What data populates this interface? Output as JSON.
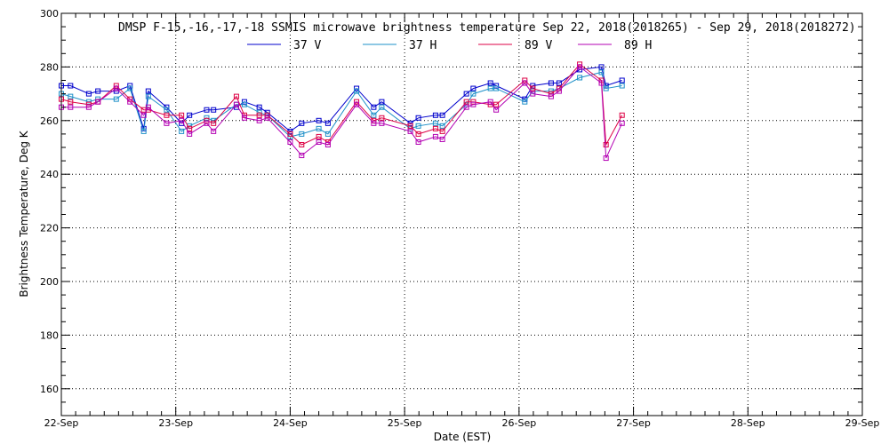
{
  "chart_data": {
    "type": "line",
    "title": "DMSP F-15,-16,-17,-18 SSMIS microwave brightness temperature Sep 22, 2018(2018265) - Sep 29, 2018(2018272)",
    "xlabel": "Date (EST)",
    "ylabel": "Brightness Temperature, Deg K",
    "ylim": [
      150,
      300
    ],
    "yticks": [
      160,
      180,
      200,
      220,
      240,
      260,
      280,
      300
    ],
    "xlim": [
      0,
      7
    ],
    "xticks": [
      0,
      1,
      2,
      3,
      4,
      5,
      6,
      7
    ],
    "xtick_labels": [
      "22-Sep",
      "23-Sep",
      "24-Sep",
      "25-Sep",
      "26-Sep",
      "27-Sep",
      "28-Sep",
      "29-Sep"
    ],
    "grid": true,
    "legend_position": "top-center",
    "series": [
      {
        "name": "37 V",
        "color": "#0000cc",
        "x": [
          0.0,
          0.08,
          0.24,
          0.32,
          0.48,
          0.6,
          0.72,
          0.76,
          0.92,
          1.05,
          1.12,
          1.27,
          1.33,
          1.53,
          1.6,
          1.73,
          1.8,
          2.0,
          2.1,
          2.25,
          2.33,
          2.58,
          2.73,
          2.8,
          3.05,
          3.12,
          3.27,
          3.33,
          3.54,
          3.6,
          3.75,
          3.8,
          4.05,
          4.12,
          4.28,
          4.35,
          4.53,
          4.72,
          4.76,
          4.9
        ],
        "values": [
          273,
          273,
          270,
          271,
          271,
          273,
          257,
          271,
          265,
          259,
          262,
          264,
          264,
          265,
          267,
          265,
          263,
          256,
          259,
          260,
          259,
          272,
          265,
          267,
          259,
          261,
          262,
          262,
          270,
          272,
          274,
          273,
          268,
          273,
          274,
          274,
          279,
          280,
          273,
          275
        ]
      },
      {
        "name": "37 H",
        "color": "#1e90c8",
        "x": [
          0.0,
          0.08,
          0.24,
          0.32,
          0.48,
          0.6,
          0.72,
          0.76,
          0.92,
          1.05,
          1.12,
          1.27,
          1.33,
          1.53,
          1.6,
          1.73,
          1.8,
          2.0,
          2.1,
          2.25,
          2.33,
          2.58,
          2.73,
          2.8,
          3.05,
          3.12,
          3.27,
          3.33,
          3.54,
          3.6,
          3.75,
          3.8,
          4.05,
          4.12,
          4.28,
          4.35,
          4.53,
          4.72,
          4.76,
          4.9
        ],
        "values": [
          270,
          269,
          267,
          268,
          268,
          272,
          256,
          269,
          264,
          256,
          258,
          261,
          260,
          266,
          266,
          263,
          262,
          254,
          255,
          257,
          255,
          271,
          262,
          265,
          257,
          258,
          259,
          258,
          266,
          270,
          272,
          272,
          267,
          271,
          271,
          272,
          276,
          278,
          272,
          273
        ]
      },
      {
        "name": "89 V",
        "color": "#dd0044",
        "x": [
          0.0,
          0.08,
          0.24,
          0.32,
          0.48,
          0.6,
          0.72,
          0.76,
          0.92,
          1.05,
          1.12,
          1.27,
          1.33,
          1.53,
          1.6,
          1.73,
          1.8,
          2.0,
          2.1,
          2.25,
          2.33,
          2.58,
          2.73,
          2.8,
          3.05,
          3.12,
          3.27,
          3.33,
          3.54,
          3.6,
          3.75,
          3.8,
          4.05,
          4.12,
          4.28,
          4.35,
          4.53,
          4.72,
          4.76,
          4.9
        ],
        "values": [
          268,
          267,
          266,
          267,
          273,
          268,
          264,
          264,
          262,
          262,
          257,
          260,
          259,
          269,
          262,
          262,
          262,
          255,
          251,
          254,
          252,
          267,
          260,
          261,
          258,
          255,
          257,
          256,
          267,
          267,
          266,
          266,
          275,
          272,
          270,
          272,
          281,
          275,
          251,
          262
        ]
      },
      {
        "name": "89 H",
        "color": "#b300b3",
        "x": [
          0.0,
          0.08,
          0.24,
          0.32,
          0.48,
          0.6,
          0.72,
          0.76,
          0.92,
          1.05,
          1.12,
          1.27,
          1.33,
          1.53,
          1.6,
          1.73,
          1.8,
          2.0,
          2.1,
          2.25,
          2.33,
          2.58,
          2.73,
          2.8,
          3.05,
          3.12,
          3.27,
          3.33,
          3.54,
          3.6,
          3.75,
          3.8,
          4.05,
          4.12,
          4.28,
          4.35,
          4.53,
          4.72,
          4.76,
          4.9
        ],
        "values": [
          265,
          265,
          265,
          267,
          272,
          267,
          262,
          265,
          259,
          260,
          255,
          259,
          256,
          266,
          261,
          260,
          261,
          252,
          247,
          252,
          251,
          266,
          259,
          259,
          256,
          252,
          254,
          253,
          265,
          266,
          267,
          264,
          274,
          270,
          269,
          271,
          280,
          274,
          246,
          259
        ]
      }
    ]
  }
}
